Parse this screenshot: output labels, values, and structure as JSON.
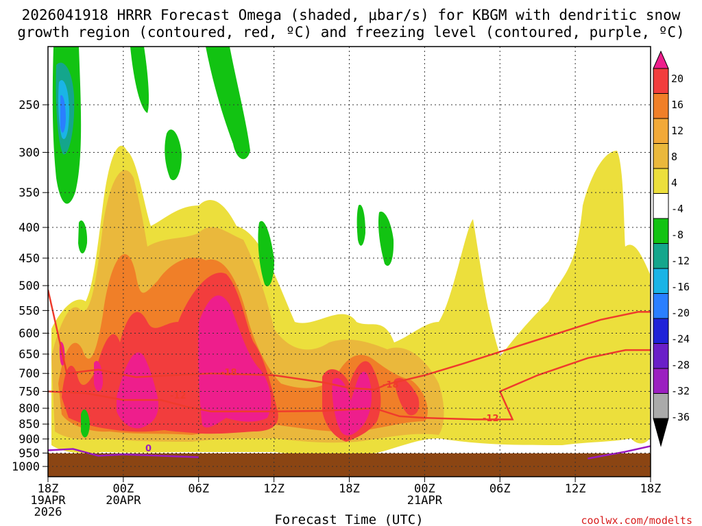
{
  "chart_data": {
    "type": "heatmap",
    "title_lines": [
      "2026041918 HRRR Forecast Omega (shaded, μbar/s) for KBGM with dendritic snow",
      "growth region (contoured, red, ºC) and freezing level (contoured, purple, ºC)"
    ],
    "xlabel": "Forecast Time (UTC)",
    "credit": "coolwx.com/modelts",
    "x_hours_range": [
      0,
      48
    ],
    "y_pressure_range_hPa": [
      1000,
      200
    ],
    "x_ticks": [
      {
        "hour": 0,
        "lines": [
          "18Z",
          "19APR",
          "2026"
        ]
      },
      {
        "hour": 6,
        "lines": [
          "00Z",
          "20APR"
        ]
      },
      {
        "hour": 12,
        "lines": [
          "06Z"
        ]
      },
      {
        "hour": 18,
        "lines": [
          "12Z"
        ]
      },
      {
        "hour": 24,
        "lines": [
          "18Z"
        ]
      },
      {
        "hour": 30,
        "lines": [
          "00Z",
          "21APR"
        ]
      },
      {
        "hour": 36,
        "lines": [
          "06Z"
        ]
      },
      {
        "hour": 42,
        "lines": [
          "12Z"
        ]
      },
      {
        "hour": 48,
        "lines": [
          "18Z"
        ]
      }
    ],
    "y_ticks": [
      "250",
      "300",
      "350",
      "400",
      "450",
      "500",
      "550",
      "600",
      "650",
      "700",
      "750",
      "800",
      "850",
      "900",
      "950",
      "1000"
    ],
    "colorbar": {
      "labels": [
        "20",
        "16",
        "12",
        "8",
        "4",
        "-4",
        "-8",
        "-12",
        "-16",
        "-20",
        "-24",
        "-28",
        "-32",
        "-36"
      ],
      "colors": [
        "#ee1e8c",
        "#f23d3d",
        "#f07f28",
        "#f2a938",
        "#eab83c",
        "#ecdf3c",
        "#ffffff",
        "#12c312",
        "#14a68c",
        "#1ab4e6",
        "#2a7fff",
        "#1f22d8",
        "#6a1fc8",
        "#9b1fc0",
        "#aaaaaa"
      ]
    },
    "contour_labels": {
      "dgz_upper": "-18",
      "dgz_lower": "-12",
      "freezing": "0"
    },
    "features": {
      "red_contour_upper_path": [
        [
          0,
          508
        ],
        [
          1.5,
          700
        ],
        [
          4,
          690
        ],
        [
          7,
          710
        ],
        [
          10,
          705
        ],
        [
          13,
          700
        ],
        [
          18,
          705
        ],
        [
          22,
          725
        ],
        [
          24,
          740
        ],
        [
          26,
          745
        ],
        [
          27,
          730
        ],
        [
          30,
          705
        ],
        [
          33,
          675
        ],
        [
          38,
          625
        ],
        [
          44,
          570
        ],
        [
          47,
          553
        ],
        [
          48,
          553
        ]
      ],
      "red_contour_lower_path": [
        [
          0,
          750
        ],
        [
          3,
          755
        ],
        [
          6,
          775
        ],
        [
          9,
          775
        ],
        [
          11,
          795
        ],
        [
          13,
          810
        ],
        [
          18,
          810
        ],
        [
          22,
          808
        ],
        [
          26,
          800
        ],
        [
          28,
          825
        ],
        [
          30,
          830
        ],
        [
          34,
          835
        ],
        [
          37,
          835
        ],
        [
          36,
          750
        ],
        [
          39,
          705
        ],
        [
          43,
          660
        ],
        [
          46,
          640
        ],
        [
          48,
          640
        ]
      ],
      "freezing_path": [
        [
          0,
          940
        ],
        [
          2,
          935
        ],
        [
          4,
          960
        ],
        [
          6,
          955
        ],
        [
          9,
          960
        ],
        [
          12,
          965
        ]
      ],
      "freezing_path_right": [
        [
          43,
          970
        ],
        [
          46,
          945
        ],
        [
          48,
          925
        ]
      ]
    }
  }
}
